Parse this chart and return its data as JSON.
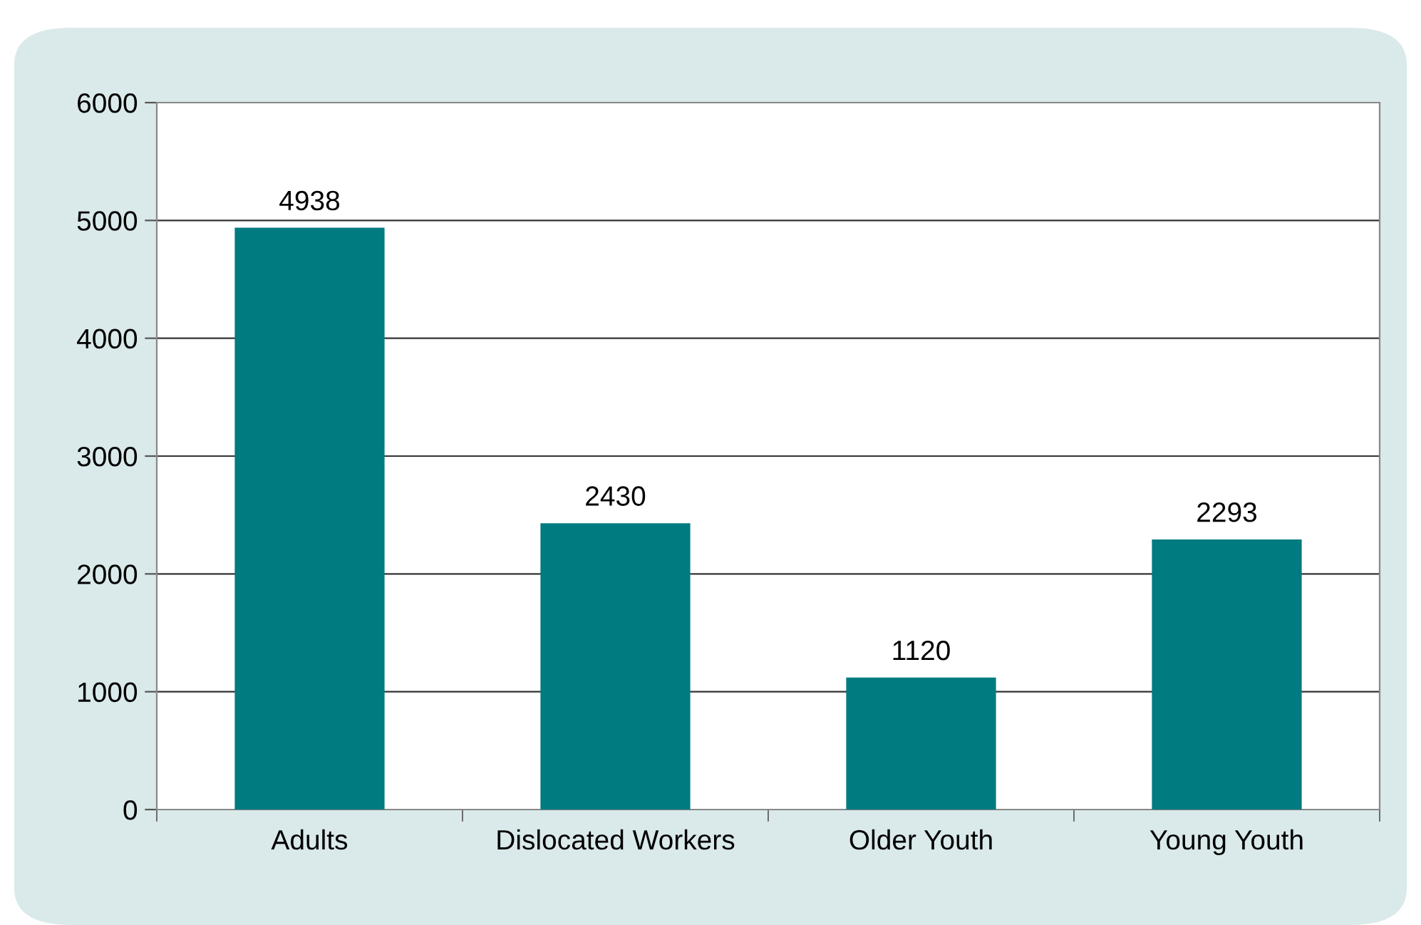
{
  "chart_data": {
    "type": "bar",
    "categories": [
      "Adults",
      "Dislocated Workers",
      "Older Youth",
      "Young Youth"
    ],
    "values": [
      4938,
      2430,
      1120,
      2293
    ],
    "color": "#007b80",
    "ylim": [
      0,
      6000
    ],
    "yticks": [
      0,
      1000,
      2000,
      3000,
      4000,
      5000,
      6000
    ],
    "grid": "y",
    "data_labels": true
  }
}
